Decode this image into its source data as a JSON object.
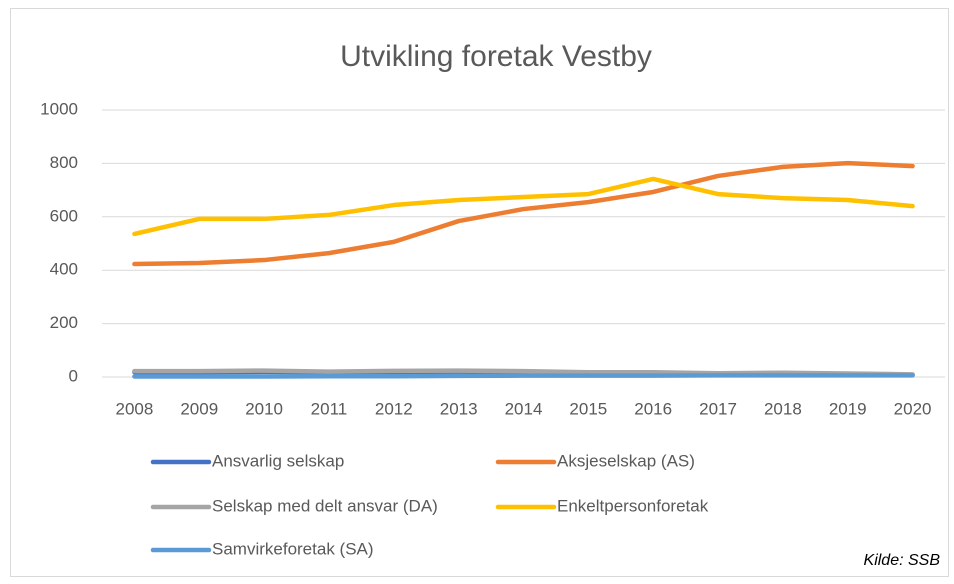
{
  "chart_data": {
    "type": "line",
    "title": "Utvikling foretak Vestby",
    "annotation": "Kilde: SSB",
    "categories": [
      "2008",
      "2009",
      "2010",
      "2011",
      "2012",
      "2013",
      "2014",
      "2015",
      "2016",
      "2017",
      "2018",
      "2019",
      "2020"
    ],
    "ylim": [
      0,
      1000
    ],
    "yticks": [
      0,
      200,
      400,
      600,
      800,
      1000
    ],
    "grid": true,
    "series": [
      {
        "name": "Ansvarlig selskap",
        "color": "#4472c4",
        "values": [
          18,
          18,
          19,
          17,
          19,
          20,
          18,
          14,
          14,
          11,
          12,
          10,
          8
        ]
      },
      {
        "name": "Aksjeselskap (AS)",
        "color": "#ed7d31",
        "values": [
          423,
          427,
          438,
          464,
          506,
          584,
          629,
          655,
          693,
          753,
          787,
          801,
          790
        ]
      },
      {
        "name": "Selskap med delt ansvar (DA)",
        "color": "#a5a5a5",
        "values": [
          22,
          22,
          24,
          20,
          23,
          24,
          22,
          18,
          18,
          14,
          16,
          13,
          10
        ]
      },
      {
        "name": "Enkeltpersonforetak",
        "color": "#ffc000",
        "values": [
          536,
          592,
          592,
          607,
          644,
          663,
          674,
          685,
          742,
          685,
          670,
          663,
          640
        ]
      },
      {
        "name": "Samvirkeforetak (SA)",
        "color": "#5b9bd5",
        "values": [
          2,
          2,
          2,
          3,
          3,
          4,
          5,
          5,
          5,
          6,
          6,
          6,
          6
        ]
      }
    ]
  }
}
